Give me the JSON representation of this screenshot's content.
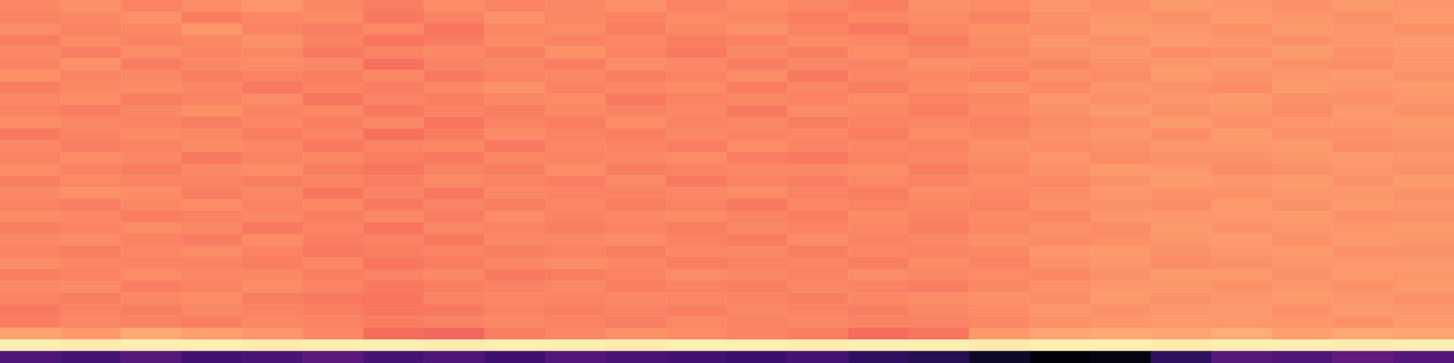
{
  "chart_data": {
    "type": "heatmap",
    "tick_labels": false,
    "zlim": [
      5,
      105
    ],
    "cells": [
      [
        80,
        82,
        79,
        81,
        83,
        80,
        78,
        81,
        79,
        80,
        82,
        79,
        81,
        80,
        78,
        82,
        81,
        83,
        82,
        84,
        83,
        82,
        84,
        83
      ],
      [
        79,
        80,
        82,
        78,
        80,
        81,
        77,
        79,
        82,
        80,
        79,
        81,
        80,
        78,
        80,
        81,
        79,
        82,
        83,
        82,
        84,
        83,
        82,
        84
      ],
      [
        81,
        79,
        80,
        83,
        79,
        78,
        80,
        76,
        80,
        81,
        78,
        80,
        82,
        79,
        77,
        80,
        82,
        81,
        84,
        83,
        82,
        84,
        83,
        82
      ],
      [
        78,
        81,
        79,
        80,
        82,
        79,
        76,
        78,
        81,
        79,
        80,
        78,
        79,
        81,
        80,
        78,
        81,
        83,
        82,
        84,
        83,
        82,
        83,
        84
      ],
      [
        80,
        78,
        81,
        79,
        80,
        77,
        79,
        80,
        78,
        82,
        79,
        77,
        80,
        78,
        81,
        79,
        80,
        82,
        83,
        81,
        82,
        84,
        82,
        83
      ],
      [
        79,
        82,
        78,
        80,
        81,
        80,
        75,
        79,
        80,
        78,
        81,
        80,
        78,
        80,
        79,
        82,
        81,
        80,
        82,
        83,
        84,
        82,
        81,
        83
      ],
      [
        82,
        79,
        80,
        78,
        79,
        78,
        80,
        77,
        79,
        80,
        78,
        79,
        81,
        77,
        80,
        80,
        79,
        82,
        81,
        84,
        82,
        83,
        84,
        82
      ],
      [
        78,
        80,
        81,
        80,
        77,
        79,
        78,
        80,
        82,
        79,
        80,
        81,
        78,
        80,
        78,
        81,
        82,
        80,
        83,
        82,
        81,
        84,
        83,
        84
      ],
      [
        80,
        81,
        78,
        79,
        81,
        76,
        79,
        78,
        80,
        81,
        77,
        79,
        80,
        79,
        81,
        79,
        80,
        83,
        82,
        83,
        84,
        82,
        82,
        83
      ],
      [
        79,
        78,
        80,
        82,
        79,
        80,
        77,
        79,
        78,
        80,
        79,
        80,
        77,
        81,
        80,
        78,
        81,
        82,
        84,
        82,
        83,
        81,
        84,
        82
      ],
      [
        81,
        80,
        79,
        78,
        80,
        78,
        80,
        76,
        79,
        78,
        81,
        79,
        80,
        78,
        79,
        80,
        79,
        81,
        82,
        84,
        82,
        83,
        83,
        84
      ],
      [
        77,
        79,
        81,
        80,
        78,
        79,
        75,
        78,
        81,
        79,
        78,
        80,
        79,
        80,
        78,
        81,
        80,
        82,
        83,
        81,
        84,
        82,
        82,
        83
      ],
      [
        80,
        78,
        79,
        81,
        80,
        77,
        79,
        80,
        77,
        80,
        79,
        78,
        81,
        79,
        80,
        79,
        82,
        81,
        82,
        83,
        83,
        84,
        81,
        82
      ],
      [
        79,
        81,
        80,
        77,
        79,
        80,
        78,
        77,
        80,
        79,
        80,
        81,
        78,
        77,
        79,
        80,
        81,
        83,
        81,
        82,
        82,
        83,
        84,
        83
      ],
      [
        81,
        79,
        78,
        80,
        81,
        78,
        76,
        79,
        78,
        81,
        78,
        79,
        80,
        80,
        81,
        78,
        80,
        82,
        84,
        83,
        81,
        82,
        83,
        82
      ],
      [
        78,
        80,
        79,
        79,
        78,
        79,
        78,
        80,
        79,
        78,
        80,
        77,
        79,
        78,
        80,
        79,
        81,
        80,
        82,
        84,
        83,
        84,
        82,
        84
      ],
      [
        80,
        82,
        81,
        78,
        80,
        76,
        79,
        77,
        80,
        79,
        79,
        80,
        81,
        79,
        78,
        81,
        80,
        81,
        83,
        82,
        82,
        83,
        83,
        82
      ],
      [
        79,
        78,
        80,
        81,
        79,
        80,
        77,
        79,
        78,
        80,
        78,
        79,
        77,
        80,
        79,
        80,
        79,
        82,
        82,
        81,
        84,
        82,
        84,
        83
      ],
      [
        81,
        80,
        78,
        79,
        80,
        78,
        80,
        78,
        81,
        79,
        80,
        81,
        79,
        78,
        81,
        79,
        81,
        80,
        83,
        83,
        83,
        84,
        82,
        82
      ],
      [
        78,
        79,
        81,
        80,
        77,
        79,
        76,
        80,
        79,
        78,
        79,
        78,
        80,
        79,
        80,
        78,
        80,
        82,
        81,
        84,
        82,
        83,
        83,
        84
      ],
      [
        80,
        81,
        79,
        78,
        81,
        78,
        79,
        77,
        80,
        80,
        81,
        79,
        78,
        81,
        79,
        80,
        82,
        81,
        82,
        83,
        84,
        82,
        84,
        83
      ],
      [
        79,
        78,
        80,
        81,
        79,
        77,
        78,
        79,
        78,
        79,
        78,
        80,
        80,
        78,
        80,
        79,
        80,
        83,
        84,
        82,
        83,
        84,
        82,
        82
      ],
      [
        81,
        80,
        79,
        79,
        78,
        80,
        76,
        78,
        80,
        81,
        80,
        78,
        79,
        80,
        78,
        81,
        79,
        82,
        83,
        81,
        82,
        83,
        83,
        84
      ],
      [
        78,
        79,
        81,
        80,
        80,
        78,
        79,
        80,
        77,
        78,
        79,
        81,
        80,
        79,
        81,
        80,
        81,
        80,
        82,
        84,
        84,
        82,
        84,
        83
      ],
      [
        80,
        81,
        78,
        79,
        81,
        79,
        77,
        78,
        79,
        80,
        78,
        79,
        78,
        80,
        79,
        78,
        80,
        82,
        83,
        83,
        82,
        83,
        82,
        84
      ],
      [
        79,
        78,
        80,
        81,
        78,
        77,
        76,
        79,
        80,
        79,
        80,
        80,
        79,
        78,
        80,
        81,
        82,
        81,
        84,
        82,
        83,
        84,
        83,
        82
      ],
      [
        77,
        79,
        78,
        80,
        79,
        78,
        76,
        77,
        79,
        78,
        79,
        78,
        80,
        79,
        78,
        80,
        81,
        83,
        82,
        83,
        84,
        82,
        84,
        83
      ],
      [
        78,
        80,
        79,
        78,
        80,
        79,
        78,
        79,
        80,
        79,
        78,
        80,
        79,
        80,
        79,
        79,
        80,
        82,
        83,
        84,
        83,
        83,
        82,
        84
      ],
      [
        86,
        84,
        87,
        85,
        83,
        80,
        74,
        73,
        78,
        80,
        82,
        81,
        79,
        78,
        74,
        76,
        84,
        86,
        87,
        86,
        88,
        85,
        87,
        86
      ],
      [
        102,
        101,
        102,
        102,
        101,
        102,
        102,
        101,
        102,
        102,
        101,
        102,
        102,
        101,
        102,
        102,
        101,
        102,
        102,
        101,
        102,
        102,
        101,
        102
      ],
      [
        30,
        28,
        32,
        27,
        29,
        33,
        28,
        30,
        26,
        31,
        29,
        27,
        25,
        28,
        22,
        20,
        12,
        6,
        8,
        22,
        32,
        30,
        34,
        31
      ]
    ]
  }
}
